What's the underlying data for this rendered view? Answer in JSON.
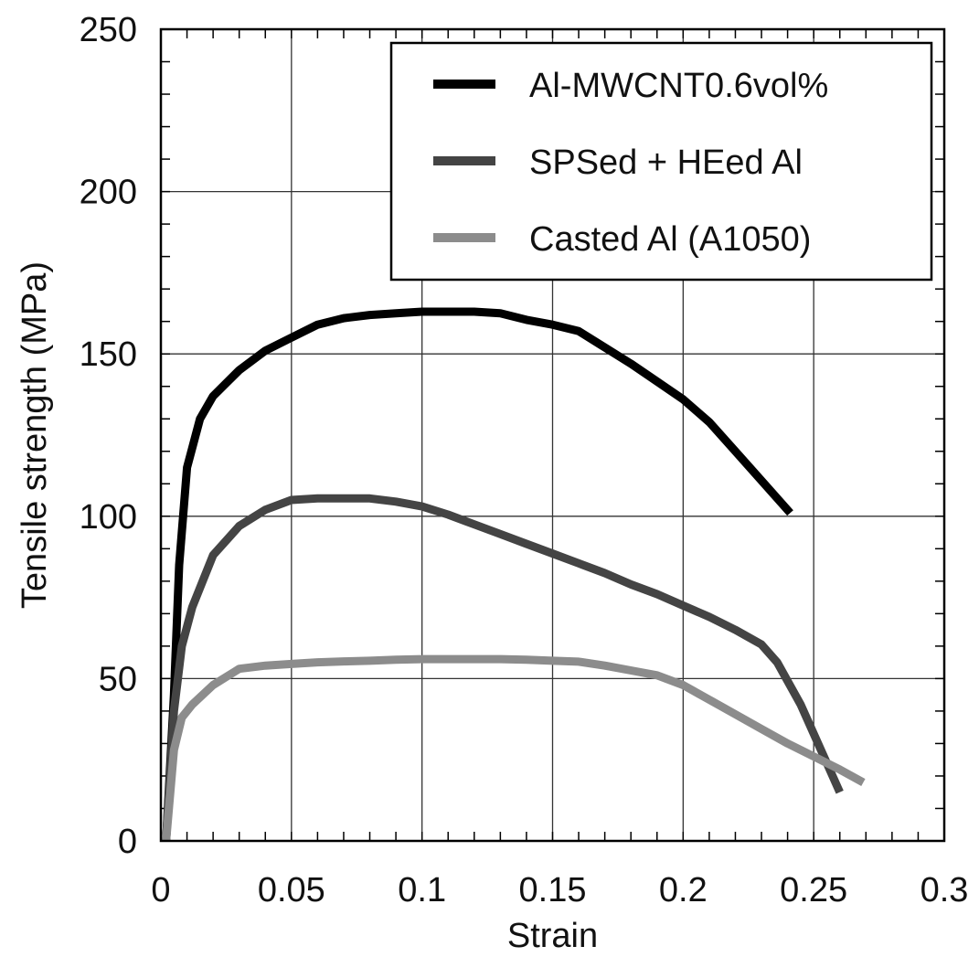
{
  "chart_data": {
    "type": "line",
    "title": "",
    "xlabel": "Strain",
    "ylabel": "Tensile strength (MPa)",
    "xlim": [
      0,
      0.3
    ],
    "ylim": [
      0,
      250
    ],
    "xticks": [
      0,
      0.05,
      0.1,
      0.15,
      0.2,
      0.25,
      0.3
    ],
    "xtick_labels": [
      "0",
      "0.05",
      "0.1",
      "0.15",
      "0.2",
      "0.25",
      "0.3"
    ],
    "yticks": [
      0,
      50,
      100,
      150,
      200,
      250
    ],
    "ytick_labels": [
      "0",
      "50",
      "100",
      "150",
      "200",
      "250"
    ],
    "grid": true,
    "legend_position": "top-right",
    "series": [
      {
        "name": "Al-MWCNT0.6vol%",
        "color": "#000000",
        "points": [
          [
            0.002,
            0
          ],
          [
            0.005,
            45
          ],
          [
            0.007,
            85
          ],
          [
            0.01,
            115
          ],
          [
            0.015,
            130
          ],
          [
            0.02,
            137
          ],
          [
            0.03,
            145
          ],
          [
            0.04,
            151
          ],
          [
            0.05,
            155
          ],
          [
            0.06,
            159
          ],
          [
            0.07,
            161
          ],
          [
            0.08,
            162
          ],
          [
            0.09,
            162.5
          ],
          [
            0.1,
            163
          ],
          [
            0.11,
            163
          ],
          [
            0.12,
            163
          ],
          [
            0.13,
            162.5
          ],
          [
            0.14,
            160.5
          ],
          [
            0.15,
            159
          ],
          [
            0.16,
            157
          ],
          [
            0.17,
            152
          ],
          [
            0.18,
            147
          ],
          [
            0.19,
            141.5
          ],
          [
            0.2,
            136
          ],
          [
            0.21,
            129
          ],
          [
            0.22,
            120
          ],
          [
            0.23,
            111
          ],
          [
            0.241,
            101
          ]
        ]
      },
      {
        "name": "SPSed + HEed Al",
        "color": "#444444",
        "points": [
          [
            0.002,
            0
          ],
          [
            0.005,
            40
          ],
          [
            0.008,
            60
          ],
          [
            0.012,
            72
          ],
          [
            0.02,
            88
          ],
          [
            0.03,
            97
          ],
          [
            0.04,
            102
          ],
          [
            0.05,
            105
          ],
          [
            0.06,
            105.5
          ],
          [
            0.07,
            105.5
          ],
          [
            0.08,
            105.5
          ],
          [
            0.09,
            104.5
          ],
          [
            0.1,
            103
          ],
          [
            0.11,
            100.5
          ],
          [
            0.12,
            97.5
          ],
          [
            0.13,
            94.5
          ],
          [
            0.14,
            91.5
          ],
          [
            0.15,
            88.5
          ],
          [
            0.16,
            85.5
          ],
          [
            0.17,
            82.5
          ],
          [
            0.18,
            79
          ],
          [
            0.19,
            76
          ],
          [
            0.2,
            72.5
          ],
          [
            0.21,
            69
          ],
          [
            0.22,
            65
          ],
          [
            0.23,
            60.5
          ],
          [
            0.236,
            55
          ],
          [
            0.245,
            42
          ],
          [
            0.25,
            33
          ],
          [
            0.255,
            24
          ],
          [
            0.26,
            15
          ]
        ]
      },
      {
        "name": "Casted Al (A1050)",
        "color": "#8c8c8c",
        "points": [
          [
            0.002,
            0
          ],
          [
            0.005,
            28
          ],
          [
            0.008,
            38
          ],
          [
            0.012,
            42
          ],
          [
            0.02,
            48
          ],
          [
            0.03,
            53
          ],
          [
            0.04,
            54
          ],
          [
            0.05,
            54.5
          ],
          [
            0.06,
            55
          ],
          [
            0.07,
            55.3
          ],
          [
            0.08,
            55.5
          ],
          [
            0.09,
            55.8
          ],
          [
            0.1,
            56
          ],
          [
            0.11,
            56
          ],
          [
            0.12,
            56
          ],
          [
            0.13,
            56
          ],
          [
            0.14,
            55.8
          ],
          [
            0.15,
            55.5
          ],
          [
            0.16,
            55.2
          ],
          [
            0.17,
            54
          ],
          [
            0.18,
            52.5
          ],
          [
            0.19,
            51
          ],
          [
            0.2,
            48
          ],
          [
            0.21,
            43.5
          ],
          [
            0.22,
            39
          ],
          [
            0.23,
            34.5
          ],
          [
            0.24,
            30
          ],
          [
            0.25,
            26
          ],
          [
            0.26,
            22
          ],
          [
            0.269,
            18
          ]
        ]
      }
    ]
  }
}
